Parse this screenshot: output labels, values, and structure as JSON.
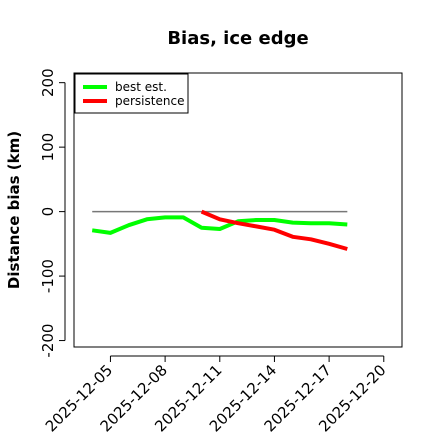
{
  "chart_data": {
    "type": "line",
    "title": "Bias, ice edge",
    "xlabel": "",
    "ylabel": "Distance bias (km)",
    "xlim": [
      "2025-12-03",
      "2025-12-21"
    ],
    "ylim": [
      -210,
      215
    ],
    "x_ticks": [
      "2025-12-05",
      "2025-12-08",
      "2025-12-11",
      "2025-12-14",
      "2025-12-17",
      "2025-12-20"
    ],
    "y_ticks": [
      -200,
      -100,
      0,
      100,
      200
    ],
    "y_tick_labels": [
      "-200",
      "-100",
      "0",
      "100",
      "200"
    ],
    "reference_line": {
      "y": 0,
      "x_range": [
        "2025-12-04",
        "2025-12-18"
      ],
      "color": "#777777"
    },
    "legend": {
      "position": "top-left"
    },
    "series": [
      {
        "name": "best est.",
        "color": "#00ff00",
        "x": [
          "2025-12-04",
          "2025-12-05",
          "2025-12-06",
          "2025-12-07",
          "2025-12-08",
          "2025-12-09",
          "2025-12-10",
          "2025-12-11",
          "2025-12-12",
          "2025-12-13",
          "2025-12-14",
          "2025-12-15",
          "2025-12-16",
          "2025-12-17",
          "2025-12-18"
        ],
        "y": [
          -29,
          -33,
          -21,
          -12,
          -9,
          -9,
          -25,
          -27,
          -15,
          -13,
          -13,
          -17,
          -18,
          -18,
          -20
        ]
      },
      {
        "name": "persistence",
        "color": "#ff0000",
        "x": [
          "2025-12-10",
          "2025-12-11",
          "2025-12-12",
          "2025-12-13",
          "2025-12-14",
          "2025-12-15",
          "2025-12-16",
          "2025-12-17",
          "2025-12-18"
        ],
        "y": [
          0,
          -12,
          -18,
          -23,
          -28,
          -39,
          -43,
          -50,
          -58
        ]
      }
    ]
  }
}
